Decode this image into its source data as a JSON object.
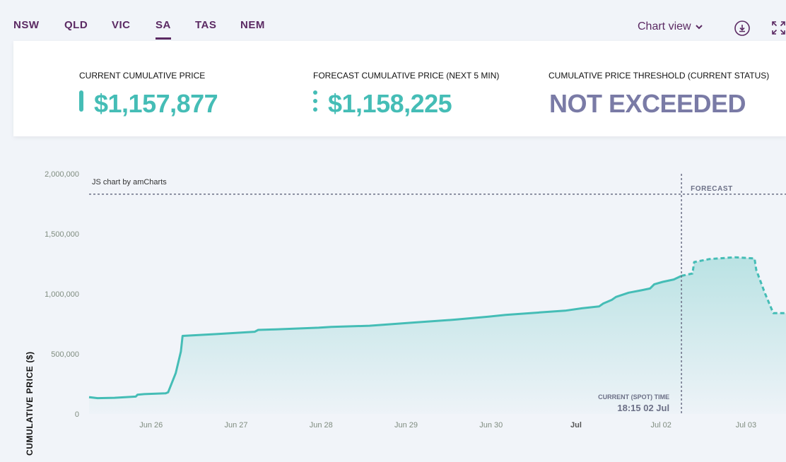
{
  "tabs": [
    {
      "label": "NSW",
      "active": false
    },
    {
      "label": "QLD",
      "active": false
    },
    {
      "label": "VIC",
      "active": false
    },
    {
      "label": "SA",
      "active": true
    },
    {
      "label": "TAS",
      "active": false
    },
    {
      "label": "NEM",
      "active": false
    }
  ],
  "toolbar": {
    "view_label": "Chart view",
    "download_icon": "download-icon",
    "expand_icon": "expand-icon"
  },
  "metrics": {
    "current": {
      "label": "CURRENT CUMULATIVE PRICE",
      "value": "$1,157,877",
      "color": "#45bdb6"
    },
    "forecast": {
      "label": "FORECAST CUMULATIVE PRICE (NEXT 5 MIN)",
      "value": "$1,158,225",
      "color": "#45bdb6"
    },
    "threshold": {
      "label": "CUMULATIVE PRICE THRESHOLD (CURRENT STATUS)",
      "value": "NOT EXCEEDED",
      "color": "#7a7ba6"
    }
  },
  "chart_data": {
    "type": "area",
    "ylabel": "CUMULATIVE PRICE ($)",
    "credit": "JS chart by amCharts",
    "ylim": [
      0,
      2000000
    ],
    "yticks": [
      0,
      500000,
      1000000,
      1500000,
      2000000
    ],
    "ytick_labels": [
      "0",
      "500,000",
      "1,000,000",
      "1,500,000",
      "2,000,000"
    ],
    "xlim": [
      0,
      8.2
    ],
    "xticks": [
      {
        "x": 0.73,
        "label": "Jun 26",
        "bold": false
      },
      {
        "x": 1.73,
        "label": "Jun 27",
        "bold": false
      },
      {
        "x": 2.73,
        "label": "Jun 28",
        "bold": false
      },
      {
        "x": 3.73,
        "label": "Jun 29",
        "bold": false
      },
      {
        "x": 4.73,
        "label": "Jun 30",
        "bold": false
      },
      {
        "x": 5.73,
        "label": "Jul",
        "bold": true
      },
      {
        "x": 6.73,
        "label": "Jul 02",
        "bold": false
      },
      {
        "x": 7.73,
        "label": "Jul 03",
        "bold": false
      }
    ],
    "threshold": 1830000,
    "spot_x": 6.97,
    "forecast_label": "FORECAST",
    "spot_label": "CURRENT (SPOT) TIME",
    "spot_time": "18:15 02 Jul",
    "color": "#45bdb6",
    "series": [
      {
        "values": [
          [
            0,
            140000
          ],
          [
            0.1,
            132000
          ],
          [
            0.3,
            135000
          ],
          [
            0.55,
            145000
          ],
          [
            0.57,
            160000
          ],
          [
            0.65,
            165000
          ],
          [
            0.9,
            172000
          ],
          [
            0.93,
            180000
          ],
          [
            1.02,
            340000
          ],
          [
            1.08,
            520000
          ],
          [
            1.1,
            650000
          ],
          [
            1.5,
            665000
          ],
          [
            1.95,
            685000
          ],
          [
            1.99,
            700000
          ],
          [
            2.2,
            705000
          ],
          [
            2.7,
            718000
          ],
          [
            2.85,
            725000
          ],
          [
            3.3,
            735000
          ],
          [
            3.8,
            760000
          ],
          [
            4.3,
            785000
          ],
          [
            4.7,
            810000
          ],
          [
            4.9,
            825000
          ],
          [
            5.3,
            845000
          ],
          [
            5.6,
            860000
          ],
          [
            5.8,
            880000
          ],
          [
            6.0,
            895000
          ],
          [
            6.05,
            920000
          ],
          [
            6.15,
            950000
          ],
          [
            6.2,
            975000
          ],
          [
            6.35,
            1010000
          ],
          [
            6.5,
            1030000
          ],
          [
            6.6,
            1045000
          ],
          [
            6.65,
            1080000
          ],
          [
            6.75,
            1100000
          ],
          [
            6.88,
            1120000
          ],
          [
            6.97,
            1150000
          ]
        ]
      },
      {
        "dashed": true,
        "values": [
          [
            6.97,
            1150000
          ],
          [
            7.1,
            1170000
          ],
          [
            7.12,
            1265000
          ],
          [
            7.3,
            1290000
          ],
          [
            7.6,
            1305000
          ],
          [
            7.83,
            1295000
          ],
          [
            7.85,
            1200000
          ],
          [
            7.95,
            1010000
          ],
          [
            8.05,
            840000
          ],
          [
            8.2,
            840000
          ]
        ]
      }
    ]
  }
}
